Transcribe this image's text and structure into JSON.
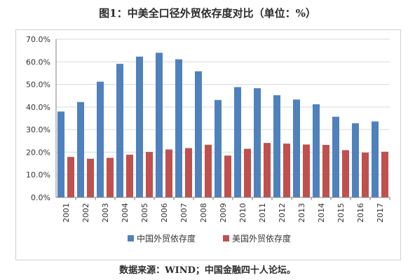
{
  "title": "图1：中美全口径外贸依存度对比（单位：%）",
  "caption": "数据来源：WIND；中国金融四十人论坛。",
  "colors": {
    "china": "#4f81bd",
    "us": "#c0504d",
    "grid": "#d9d9d9",
    "axis": "#7f7f7f"
  },
  "chart_data": {
    "type": "bar",
    "title": "图1：中美全口径外贸依存度对比（单位：%）",
    "xlabel": "",
    "ylabel": "",
    "ylim": [
      0,
      70
    ],
    "yticks": [
      "0.0%",
      "10.0%",
      "20.0%",
      "30.0%",
      "40.0%",
      "50.0%",
      "60.0%",
      "70.0%"
    ],
    "ytick_values": [
      0,
      10,
      20,
      30,
      40,
      50,
      60,
      70
    ],
    "grid": true,
    "legend_position": "bottom",
    "categories": [
      "2001",
      "2002",
      "2003",
      "2004",
      "2005",
      "2006",
      "2007",
      "2008",
      "2009",
      "2010",
      "2011",
      "2012",
      "2013",
      "2014",
      "2015",
      "2016",
      "2017"
    ],
    "series": [
      {
        "name": "中国外贸依存度",
        "color": "#4f81bd",
        "values": [
          38,
          42.2,
          51.2,
          59.1,
          62.3,
          64,
          61.1,
          55.8,
          43.1,
          48.8,
          48.3,
          45.2,
          43.3,
          41.2,
          35.7,
          32.8,
          33.6
        ]
      },
      {
        "name": "美国外贸依存度",
        "color": "#c0504d",
        "values": [
          17.9,
          17.1,
          17.5,
          18.9,
          20.1,
          21.2,
          21.8,
          23.3,
          18.5,
          21.5,
          24.1,
          23.8,
          23.4,
          23.2,
          20.9,
          19.8,
          20.2
        ]
      }
    ]
  }
}
